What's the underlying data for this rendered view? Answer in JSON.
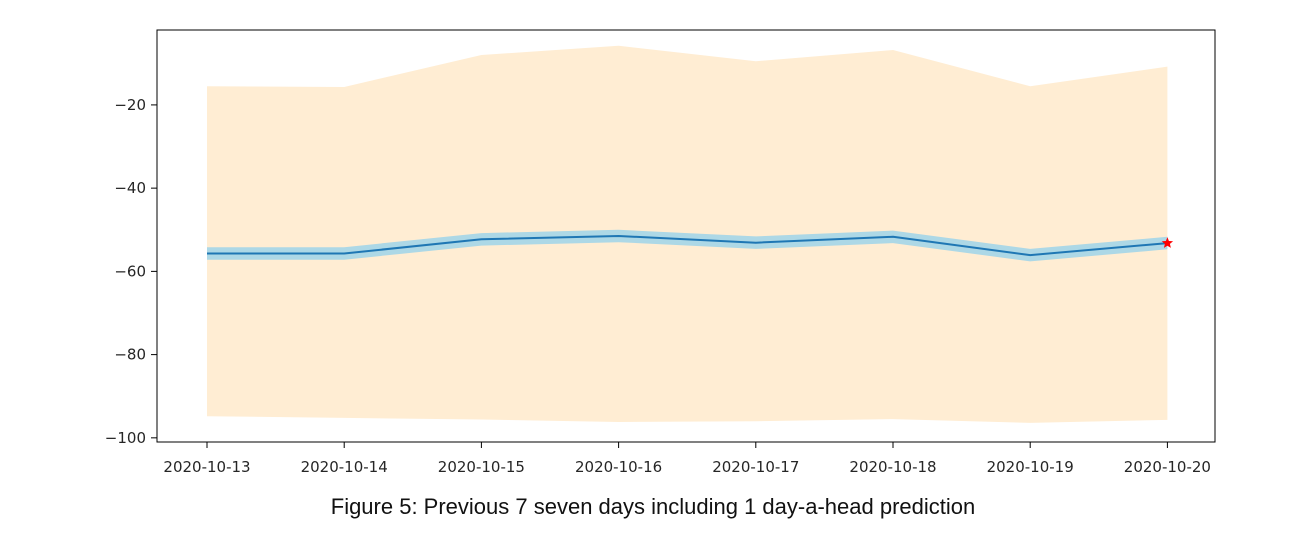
{
  "chart_data": {
    "type": "line",
    "x": [
      "2020-10-13",
      "2020-10-14",
      "2020-10-15",
      "2020-10-16",
      "2020-10-17",
      "2020-10-18",
      "2020-10-19",
      "2020-10-20"
    ],
    "series": [
      {
        "values": [
          -55.7,
          -55.7,
          -52.3,
          -51.5,
          -53.1,
          -51.7,
          -56.1,
          -53.2
        ],
        "color": "#1f77b4"
      }
    ],
    "inner_band": {
      "upper": [
        -54.2,
        -54.2,
        -50.8,
        -50.0,
        -51.6,
        -50.2,
        -54.6,
        -51.7
      ],
      "lower": [
        -57.2,
        -57.2,
        -53.8,
        -53.0,
        -54.6,
        -53.2,
        -57.6,
        -54.7
      ],
      "color": "#add8e6"
    },
    "outer_band": {
      "upper": [
        -15.5,
        -15.7,
        -8.0,
        -5.8,
        -9.5,
        -6.8,
        -15.5,
        -10.8
      ],
      "lower": [
        -94.8,
        -95.2,
        -95.6,
        -96.2,
        -96.0,
        -95.5,
        -96.4,
        -95.7
      ],
      "color": "#ffedd3"
    },
    "prediction": {
      "x": "2020-10-20",
      "y": -53.2,
      "marker": "star",
      "color": "#ff0000"
    },
    "ylim": [
      -101,
      -2
    ],
    "yticks": [
      -20,
      -40,
      -60,
      -80,
      -100
    ],
    "ytick_labels": [
      "−20",
      "−40",
      "−60",
      "−80",
      "−100"
    ],
    "grid": false,
    "title": "",
    "xlabel": "",
    "ylabel": ""
  },
  "caption": "Figure 5: Previous 7 seven days including 1 day-a-head prediction"
}
